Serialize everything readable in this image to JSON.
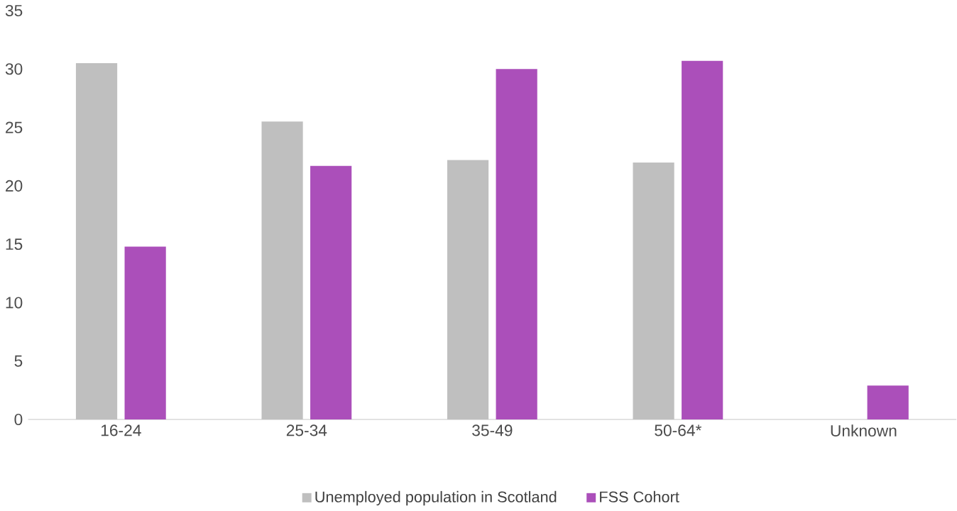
{
  "chart_data": {
    "type": "bar",
    "categories": [
      "16-24",
      "25-34",
      "35-49",
      "50-64*",
      "Unknown"
    ],
    "series": [
      {
        "name": "Unemployed population in Scotland",
        "color": "#bfbfbf",
        "values": [
          30.5,
          25.5,
          22.2,
          22.0,
          null
        ]
      },
      {
        "name": "FSS Cohort",
        "color": "#ab4fba",
        "values": [
          14.8,
          21.7,
          30.0,
          30.7,
          2.9
        ]
      }
    ],
    "ylim": [
      0,
      35
    ],
    "yticks": [
      0,
      5,
      10,
      15,
      20,
      25,
      30,
      35
    ],
    "grid": false,
    "legend": "bottom"
  }
}
